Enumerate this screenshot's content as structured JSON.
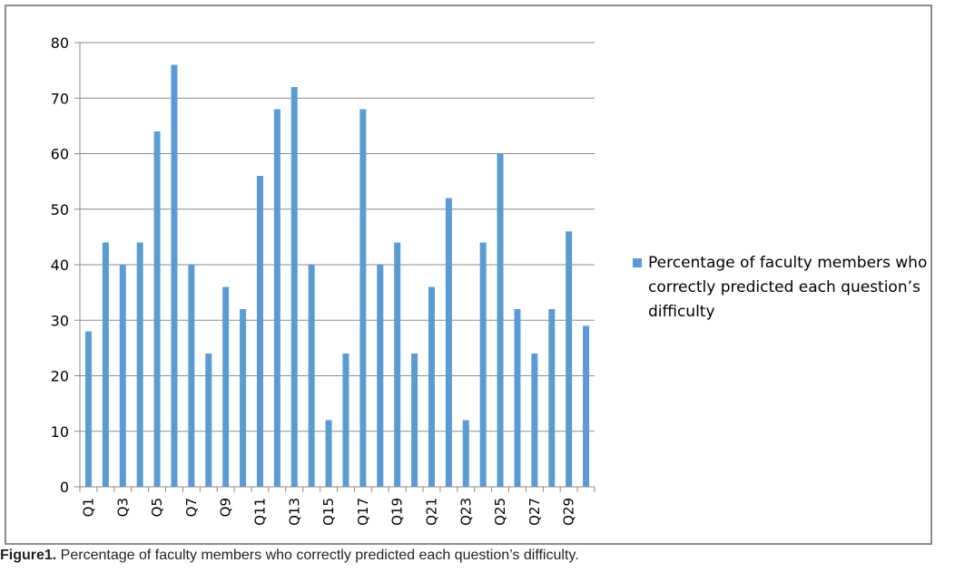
{
  "chart_data": {
    "type": "bar",
    "categories": [
      "Q1",
      "Q2",
      "Q3",
      "Q4",
      "Q5",
      "Q6",
      "Q7",
      "Q8",
      "Q9",
      "Q10",
      "Q11",
      "Q12",
      "Q13",
      "Q14",
      "Q15",
      "Q16",
      "Q17",
      "Q18",
      "Q19",
      "Q20",
      "Q21",
      "Q22",
      "Q23",
      "Q24",
      "Q25",
      "Q26",
      "Q27",
      "Q28",
      "Q29",
      "Q30"
    ],
    "tick_labels": [
      "Q1",
      "",
      "Q3",
      "",
      "Q5",
      "",
      "Q7",
      "",
      "Q9",
      "",
      "Q11",
      "",
      "Q13",
      "",
      "Q15",
      "",
      "Q17",
      "",
      "Q19",
      "",
      "Q21",
      "",
      "Q23",
      "",
      "Q25",
      "",
      "Q27",
      "",
      "Q29",
      ""
    ],
    "series": [
      {
        "name": "Percentage of faculty members who correctly predicted each question’s difficulty",
        "values": [
          28,
          44,
          40,
          44,
          64,
          76,
          40,
          24,
          36,
          32,
          56,
          68,
          72,
          40,
          12,
          24,
          68,
          40,
          44,
          24,
          36,
          52,
          12,
          44,
          60,
          32,
          24,
          32,
          46,
          29
        ],
        "color": "#5b9bd5"
      }
    ],
    "yticks": [
      0,
      10,
      20,
      30,
      40,
      50,
      60,
      70,
      80
    ],
    "ylim": [
      0,
      80
    ],
    "grid": true,
    "legend_position": "right",
    "title": "",
    "xlabel": "",
    "ylabel": ""
  },
  "caption": {
    "label": "Figure1.",
    "text": " Percentage of faculty members who correctly predicted each question’s difficulty."
  }
}
